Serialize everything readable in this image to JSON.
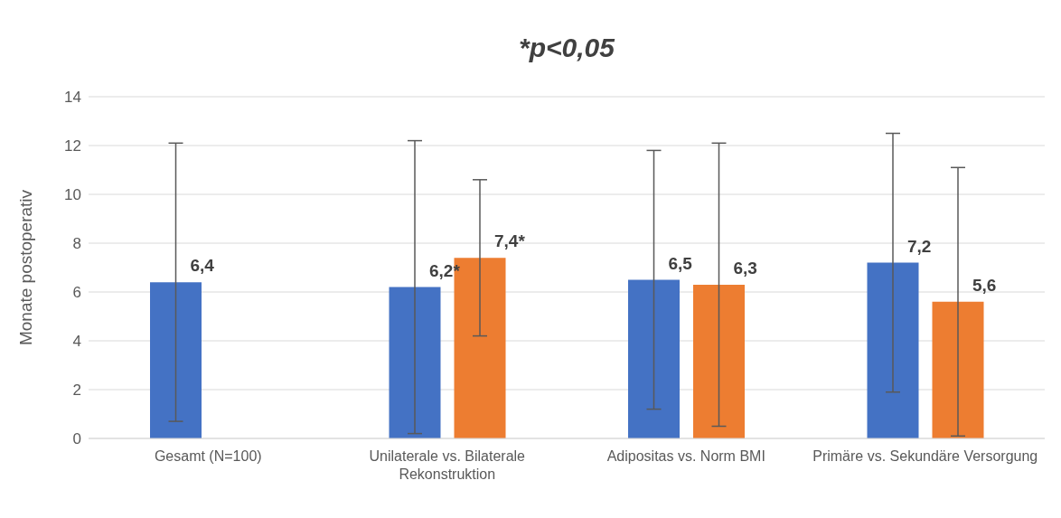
{
  "chart_data": {
    "type": "bar",
    "title": "*p<0,05",
    "ylabel": "Monate postoperativ",
    "categories": [
      "Gesamt (N=100)",
      "Unilaterale vs. Bilaterale Rekonstruktion",
      "Adipositas vs. Norm BMI",
      "Primäre vs. Sekundäre Versorgung"
    ],
    "series": [
      {
        "color": "#4472c4",
        "values": [
          6.4,
          6.2,
          6.5,
          7.2
        ],
        "errors": [
          5.7,
          6.0,
          5.3,
          5.3
        ],
        "value_labels": [
          "6,4",
          "6,2*",
          "6,5",
          "7,2"
        ]
      },
      {
        "color": "#ed7d31",
        "values": [
          null,
          7.4,
          6.3,
          5.6
        ],
        "errors": [
          null,
          3.2,
          5.8,
          5.5
        ],
        "value_labels": [
          null,
          "7,4*",
          "6,3",
          "5,6"
        ]
      }
    ],
    "ylim": [
      0,
      14
    ],
    "yticks": [
      0,
      2,
      4,
      6,
      8,
      10,
      12,
      14
    ],
    "grid": "y",
    "legend": false
  }
}
